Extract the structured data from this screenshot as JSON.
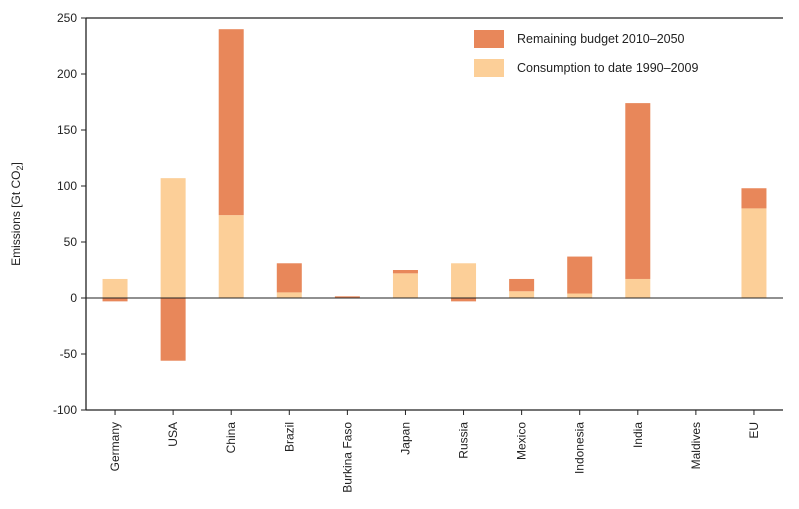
{
  "chart_data": {
    "type": "bar",
    "stacked": true,
    "ylabel": "Emissions [Gt CO",
    "ylabel_sub": "2",
    "ylabel_end": "]",
    "ylim": [
      -100,
      250
    ],
    "yticks": [
      "250",
      "200",
      "150",
      "100",
      "50",
      "0",
      "-50",
      "-100"
    ],
    "categories": [
      "Germany",
      "USA",
      "China",
      "Brazil",
      "Burkina Faso",
      "Japan",
      "Russia",
      "Mexico",
      "Indonesia",
      "India",
      "Maldives",
      "EU"
    ],
    "legend_position": "top-right",
    "grid": false,
    "series": [
      {
        "name": "Remaining budget 2010–2050",
        "color": "#e8875a",
        "values": [
          -3,
          -56,
          166,
          26,
          1.5,
          3,
          -3,
          11,
          33,
          157,
          0,
          18
        ]
      },
      {
        "name": "Consumption to date 1990–2009",
        "color": "#fccf98",
        "values": [
          17,
          107,
          74,
          5,
          0,
          22,
          31,
          6,
          4,
          17,
          0,
          80
        ]
      }
    ]
  }
}
